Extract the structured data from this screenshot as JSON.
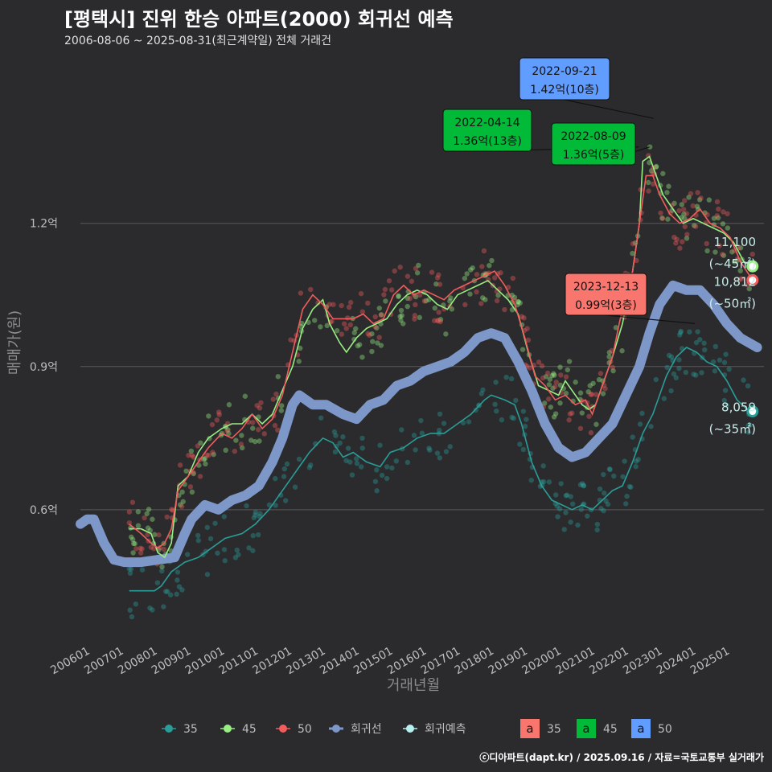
{
  "header": {
    "title": "[평택시] 진위 한승 아파트(2000) 회귀선 예측",
    "subtitle": "2006-08-06 ~ 2025-08-31(최근계약일) 전체 거래건",
    "credit": "ⓒ디아파트(dapt.kr) / 2025.09.16 / 자료=국토교통부 실거래가"
  },
  "colors": {
    "background": "#2b2b2d",
    "s35": "#2a9d98",
    "s45": "#98ee82",
    "s50": "#f25c5c",
    "regression": "#7d97c9",
    "forecast": "#b7f0ee",
    "box35": "#f8766d",
    "box45": "#00ba38",
    "box50": "#619cff"
  },
  "chart_data": {
    "type": "line",
    "title": "[평택시] 진위 한승 아파트(2000) 회귀선 예측",
    "subtitle": "2006-08-06 ~ 2025-08-31(최근계약일) 전체 거래건",
    "xlabel": "거래년월",
    "ylabel": "매매가(원)",
    "x_ticks": [
      "200601",
      "200701",
      "200801",
      "200901",
      "201001",
      "201101",
      "201201",
      "201301",
      "201401",
      "201501",
      "201601",
      "201701",
      "201801",
      "201901",
      "202001",
      "202101",
      "202201",
      "202301",
      "202401",
      "202501"
    ],
    "y_ticks": [
      {
        "value": 0.6,
        "label": "0.6억"
      },
      {
        "value": 0.9,
        "label": "0.9억"
      },
      {
        "value": 1.2,
        "label": "1.2억"
      }
    ],
    "ylim": [
      0.32,
      1.55
    ],
    "xlim": [
      2005.7,
      2026.0
    ],
    "grid": "horizontal",
    "legend_position": "bottom",
    "series": [
      {
        "name": "35",
        "key": "s35",
        "points": [
          [
            2007.15,
            0.43
          ],
          [
            2007.45,
            0.43
          ],
          [
            2007.7,
            0.43
          ],
          [
            2007.9,
            0.43
          ],
          [
            2008.1,
            0.44
          ],
          [
            2008.4,
            0.47
          ],
          [
            2008.8,
            0.49
          ],
          [
            2009.2,
            0.5
          ],
          [
            2009.6,
            0.52
          ],
          [
            2010.0,
            0.54
          ],
          [
            2010.5,
            0.55
          ],
          [
            2010.9,
            0.57
          ],
          [
            2011.3,
            0.6
          ],
          [
            2011.7,
            0.64
          ],
          [
            2012.0,
            0.67
          ],
          [
            2012.5,
            0.72
          ],
          [
            2012.9,
            0.75
          ],
          [
            2013.2,
            0.74
          ],
          [
            2013.5,
            0.71
          ],
          [
            2013.8,
            0.72
          ],
          [
            2014.2,
            0.7
          ],
          [
            2014.6,
            0.69
          ],
          [
            2014.9,
            0.72
          ],
          [
            2015.3,
            0.73
          ],
          [
            2015.7,
            0.75
          ],
          [
            2016.1,
            0.76
          ],
          [
            2016.5,
            0.76
          ],
          [
            2016.9,
            0.78
          ],
          [
            2017.3,
            0.8
          ],
          [
            2017.7,
            0.83
          ],
          [
            2017.9,
            0.84
          ],
          [
            2018.3,
            0.83
          ],
          [
            2018.6,
            0.82
          ],
          [
            2018.8,
            0.78
          ],
          [
            2019.1,
            0.7
          ],
          [
            2019.4,
            0.65
          ],
          [
            2019.7,
            0.62
          ],
          [
            2020.0,
            0.61
          ],
          [
            2020.3,
            0.6
          ],
          [
            2020.6,
            0.61
          ],
          [
            2020.9,
            0.6
          ],
          [
            2021.2,
            0.62
          ],
          [
            2021.5,
            0.64
          ],
          [
            2021.8,
            0.65
          ],
          [
            2022.1,
            0.7
          ],
          [
            2022.4,
            0.76
          ],
          [
            2022.7,
            0.8
          ],
          [
            2022.9,
            0.84
          ],
          [
            2023.1,
            0.88
          ],
          [
            2023.4,
            0.92
          ],
          [
            2023.7,
            0.94
          ],
          [
            2024.0,
            0.93
          ],
          [
            2024.3,
            0.91
          ],
          [
            2024.6,
            0.9
          ],
          [
            2024.9,
            0.87
          ],
          [
            2025.2,
            0.83
          ],
          [
            2025.5,
            0.81
          ],
          [
            2025.66,
            0.806
          ]
        ]
      },
      {
        "name": "45",
        "key": "s45",
        "points": [
          [
            2007.15,
            0.56
          ],
          [
            2007.5,
            0.56
          ],
          [
            2007.8,
            0.55
          ],
          [
            2008.0,
            0.51
          ],
          [
            2008.2,
            0.5
          ],
          [
            2008.4,
            0.53
          ],
          [
            2008.6,
            0.65
          ],
          [
            2008.9,
            0.67
          ],
          [
            2009.2,
            0.72
          ],
          [
            2009.5,
            0.75
          ],
          [
            2009.9,
            0.77
          ],
          [
            2010.2,
            0.78
          ],
          [
            2010.5,
            0.78
          ],
          [
            2010.8,
            0.8
          ],
          [
            2011.1,
            0.78
          ],
          [
            2011.4,
            0.8
          ],
          [
            2011.7,
            0.85
          ],
          [
            2012.0,
            0.9
          ],
          [
            2012.3,
            0.98
          ],
          [
            2012.6,
            1.02
          ],
          [
            2012.9,
            1.04
          ],
          [
            2013.1,
            0.99
          ],
          [
            2013.4,
            0.95
          ],
          [
            2013.6,
            0.93
          ],
          [
            2013.9,
            0.96
          ],
          [
            2014.2,
            0.98
          ],
          [
            2014.5,
            0.99
          ],
          [
            2014.8,
            1.0
          ],
          [
            2015.1,
            1.03
          ],
          [
            2015.4,
            1.05
          ],
          [
            2015.7,
            1.06
          ],
          [
            2016.0,
            1.05
          ],
          [
            2016.3,
            1.03
          ],
          [
            2016.6,
            1.02
          ],
          [
            2016.9,
            1.05
          ],
          [
            2017.2,
            1.06
          ],
          [
            2017.5,
            1.07
          ],
          [
            2017.8,
            1.08
          ],
          [
            2018.1,
            1.06
          ],
          [
            2018.4,
            1.04
          ],
          [
            2018.7,
            1.01
          ],
          [
            2019.0,
            0.93
          ],
          [
            2019.3,
            0.86
          ],
          [
            2019.6,
            0.85
          ],
          [
            2019.9,
            0.84
          ],
          [
            2020.1,
            0.87
          ],
          [
            2020.3,
            0.85
          ],
          [
            2020.6,
            0.82
          ],
          [
            2020.8,
            0.81
          ],
          [
            2021.0,
            0.82
          ],
          [
            2021.2,
            0.86
          ],
          [
            2021.5,
            0.92
          ],
          [
            2021.8,
            0.99
          ],
          [
            2022.1,
            1.1
          ],
          [
            2022.3,
            1.2
          ],
          [
            2022.4,
            1.33
          ],
          [
            2022.6,
            1.34
          ],
          [
            2022.8,
            1.3
          ],
          [
            2023.0,
            1.26
          ],
          [
            2023.3,
            1.23
          ],
          [
            2023.6,
            1.2
          ],
          [
            2023.9,
            1.21
          ],
          [
            2024.2,
            1.2
          ],
          [
            2024.5,
            1.19
          ],
          [
            2024.8,
            1.18
          ],
          [
            2025.1,
            1.16
          ],
          [
            2025.4,
            1.12
          ],
          [
            2025.66,
            1.11
          ]
        ]
      },
      {
        "name": "50",
        "key": "s50",
        "points": [
          [
            2007.15,
            0.57
          ],
          [
            2007.5,
            0.55
          ],
          [
            2007.8,
            0.53
          ],
          [
            2008.0,
            0.52
          ],
          [
            2008.2,
            0.53
          ],
          [
            2008.4,
            0.56
          ],
          [
            2008.6,
            0.64
          ],
          [
            2008.9,
            0.67
          ],
          [
            2009.2,
            0.7
          ],
          [
            2009.5,
            0.73
          ],
          [
            2009.9,
            0.76
          ],
          [
            2010.2,
            0.75
          ],
          [
            2010.5,
            0.77
          ],
          [
            2010.8,
            0.8
          ],
          [
            2011.1,
            0.77
          ],
          [
            2011.4,
            0.79
          ],
          [
            2011.7,
            0.84
          ],
          [
            2012.0,
            0.93
          ],
          [
            2012.3,
            1.02
          ],
          [
            2012.6,
            1.05
          ],
          [
            2012.9,
            1.03
          ],
          [
            2013.2,
            1.0
          ],
          [
            2013.5,
            1.0
          ],
          [
            2013.8,
            1.0
          ],
          [
            2014.1,
            1.01
          ],
          [
            2014.4,
            0.99
          ],
          [
            2014.7,
            1.0
          ],
          [
            2015.0,
            1.05
          ],
          [
            2015.3,
            1.07
          ],
          [
            2015.6,
            1.05
          ],
          [
            2015.9,
            1.06
          ],
          [
            2016.2,
            1.05
          ],
          [
            2016.5,
            1.04
          ],
          [
            2016.8,
            1.06
          ],
          [
            2017.1,
            1.07
          ],
          [
            2017.4,
            1.08
          ],
          [
            2017.7,
            1.09
          ],
          [
            2018.0,
            1.1
          ],
          [
            2018.3,
            1.07
          ],
          [
            2018.6,
            1.03
          ],
          [
            2018.9,
            0.96
          ],
          [
            2019.2,
            0.88
          ],
          [
            2019.5,
            0.86
          ],
          [
            2019.8,
            0.83
          ],
          [
            2020.1,
            0.84
          ],
          [
            2020.4,
            0.82
          ],
          [
            2020.7,
            0.83
          ],
          [
            2020.9,
            0.8
          ],
          [
            2021.2,
            0.86
          ],
          [
            2021.5,
            0.92
          ],
          [
            2021.7,
            0.99
          ],
          [
            2021.9,
            1.05
          ],
          [
            2022.1,
            1.1
          ],
          [
            2022.3,
            1.2
          ],
          [
            2022.5,
            1.3
          ],
          [
            2022.7,
            1.3
          ],
          [
            2022.9,
            1.26
          ],
          [
            2023.2,
            1.22
          ],
          [
            2023.5,
            1.2
          ],
          [
            2023.8,
            1.21
          ],
          [
            2024.1,
            1.23
          ],
          [
            2024.4,
            1.2
          ],
          [
            2024.7,
            1.19
          ],
          [
            2025.0,
            1.17
          ],
          [
            2025.3,
            1.12
          ],
          [
            2025.66,
            1.081
          ]
        ]
      },
      {
        "name": "회귀선",
        "key": "regression",
        "points": [
          [
            2005.7,
            0.57
          ],
          [
            2005.9,
            0.58
          ],
          [
            2006.1,
            0.58
          ],
          [
            2006.4,
            0.53
          ],
          [
            2006.7,
            0.495
          ],
          [
            2007.0,
            0.49
          ],
          [
            2007.5,
            0.49
          ],
          [
            2008.0,
            0.495
          ],
          [
            2008.5,
            0.5
          ],
          [
            2008.8,
            0.55
          ],
          [
            2009.0,
            0.58
          ],
          [
            2009.4,
            0.61
          ],
          [
            2009.8,
            0.6
          ],
          [
            2010.2,
            0.62
          ],
          [
            2010.6,
            0.63
          ],
          [
            2011.0,
            0.65
          ],
          [
            2011.4,
            0.7
          ],
          [
            2011.7,
            0.75
          ],
          [
            2012.0,
            0.82
          ],
          [
            2012.2,
            0.84
          ],
          [
            2012.6,
            0.82
          ],
          [
            2013.0,
            0.82
          ],
          [
            2013.5,
            0.8
          ],
          [
            2013.9,
            0.79
          ],
          [
            2014.3,
            0.82
          ],
          [
            2014.7,
            0.83
          ],
          [
            2015.1,
            0.86
          ],
          [
            2015.5,
            0.87
          ],
          [
            2015.9,
            0.89
          ],
          [
            2016.3,
            0.9
          ],
          [
            2016.7,
            0.91
          ],
          [
            2017.1,
            0.93
          ],
          [
            2017.5,
            0.96
          ],
          [
            2017.9,
            0.97
          ],
          [
            2018.3,
            0.96
          ],
          [
            2018.7,
            0.91
          ],
          [
            2019.1,
            0.85
          ],
          [
            2019.5,
            0.78
          ],
          [
            2019.9,
            0.73
          ],
          [
            2020.3,
            0.71
          ],
          [
            2020.7,
            0.72
          ],
          [
            2021.1,
            0.75
          ],
          [
            2021.5,
            0.78
          ],
          [
            2021.9,
            0.84
          ],
          [
            2022.3,
            0.9
          ],
          [
            2022.6,
            0.97
          ],
          [
            2022.9,
            1.03
          ],
          [
            2023.3,
            1.07
          ],
          [
            2023.7,
            1.06
          ],
          [
            2024.1,
            1.06
          ],
          [
            2024.5,
            1.03
          ],
          [
            2024.9,
            0.99
          ],
          [
            2025.3,
            0.96
          ],
          [
            2025.8,
            0.94
          ]
        ]
      },
      {
        "name": "회귀예측",
        "key": "forecast",
        "points": []
      }
    ],
    "end_labels": [
      {
        "series": "45",
        "value": "11,100",
        "unit": "(~45㎡)",
        "y": 1.11
      },
      {
        "series": "50",
        "value": "10,812",
        "unit": "(~50㎡)",
        "y": 1.081
      },
      {
        "series": "35",
        "value": "8,059",
        "unit": "(~35㎡)",
        "y": 0.806
      }
    ],
    "annotations": [
      {
        "date": "2022-09-21",
        "price": "1.42억(10층)",
        "box": "box50",
        "x": 2022.72,
        "y": 1.42
      },
      {
        "date": "2022-04-14",
        "price": "1.36억(13층)",
        "box": "box45",
        "x": 2022.28,
        "y": 1.36
      },
      {
        "date": "2022-08-09",
        "price": "1.36억(5층)",
        "box": "box45",
        "x": 2022.6,
        "y": 1.36
      },
      {
        "date": "2023-12-13",
        "price": "0.99억(3층)",
        "box": "box35",
        "x": 2023.95,
        "y": 0.99
      }
    ]
  },
  "legend": {
    "items": [
      {
        "label": "35",
        "key": "s35"
      },
      {
        "label": "45",
        "key": "s45"
      },
      {
        "label": "50",
        "key": "s50"
      },
      {
        "label": "회귀선",
        "key": "regression"
      },
      {
        "label": "회귀예측",
        "key": "forecast"
      }
    ],
    "box_items": [
      {
        "glyph": "a",
        "label": "35",
        "key": "box35"
      },
      {
        "glyph": "a",
        "label": "45",
        "key": "box45"
      },
      {
        "glyph": "a",
        "label": "50",
        "key": "box50"
      }
    ]
  }
}
